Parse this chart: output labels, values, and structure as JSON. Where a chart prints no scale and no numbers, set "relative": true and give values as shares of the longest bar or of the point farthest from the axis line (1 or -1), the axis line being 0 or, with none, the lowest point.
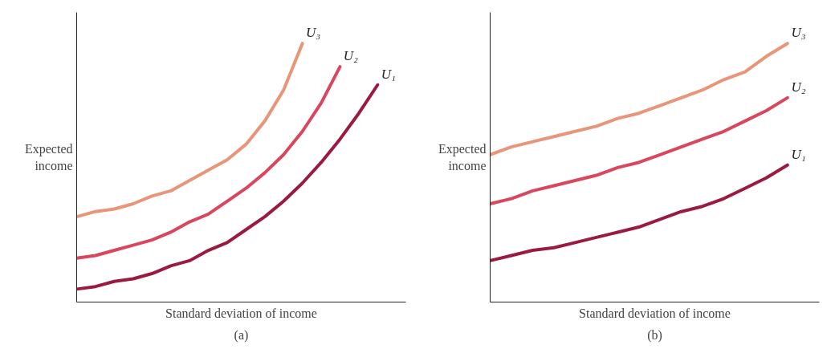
{
  "chart_data": [
    {
      "type": "line",
      "relative": true,
      "title": "(a)",
      "xlabel": "Standard deviation of income",
      "ylabel": "Expected\nincome",
      "categories": [
        null,
        null,
        null,
        null,
        null,
        null,
        null,
        null,
        null,
        null,
        null,
        null,
        null,
        null,
        null,
        null,
        null
      ],
      "series": [
        {
          "name": "U₃",
          "color": "#e8967a",
          "values": [
            0.33,
            0.35,
            0.36,
            0.38,
            0.41,
            0.43,
            0.47,
            0.51,
            0.55,
            0.61,
            0.7,
            0.82,
            1.0,
            null,
            null,
            null,
            null
          ]
        },
        {
          "name": "U₂",
          "color": "#d9475e",
          "values": [
            0.17,
            0.18,
            0.2,
            0.22,
            0.24,
            0.27,
            0.31,
            0.34,
            0.39,
            0.44,
            0.5,
            0.57,
            0.66,
            0.77,
            0.91,
            null,
            null
          ]
        },
        {
          "name": "U₁",
          "color": "#9b1b40",
          "values": [
            0.05,
            0.06,
            0.08,
            0.09,
            0.11,
            0.14,
            0.16,
            0.2,
            0.23,
            0.28,
            0.33,
            0.39,
            0.46,
            0.54,
            0.63,
            0.73,
            0.84
          ]
        }
      ]
    },
    {
      "type": "line",
      "relative": true,
      "title": "(b)",
      "xlabel": "Standard deviation of income",
      "ylabel": "Expected\nincome",
      "categories": [
        null,
        null,
        null,
        null,
        null,
        null,
        null,
        null,
        null,
        null,
        null,
        null,
        null,
        null,
        null
      ],
      "series": [
        {
          "name": "U₃",
          "color": "#e8967a",
          "values": [
            0.57,
            0.6,
            0.62,
            0.64,
            0.66,
            0.68,
            0.71,
            0.73,
            0.76,
            0.79,
            0.82,
            0.86,
            0.89,
            0.95,
            1.0
          ]
        },
        {
          "name": "U₂",
          "color": "#d9475e",
          "values": [
            0.38,
            0.4,
            0.43,
            0.45,
            0.47,
            0.49,
            0.52,
            0.54,
            0.57,
            0.6,
            0.63,
            0.66,
            0.7,
            0.74,
            0.79
          ]
        },
        {
          "name": "U₁",
          "color": "#9b1b40",
          "values": [
            0.16,
            0.18,
            0.2,
            0.21,
            0.23,
            0.25,
            0.27,
            0.29,
            0.32,
            0.35,
            0.37,
            0.4,
            0.44,
            0.48,
            0.53
          ]
        }
      ]
    }
  ]
}
